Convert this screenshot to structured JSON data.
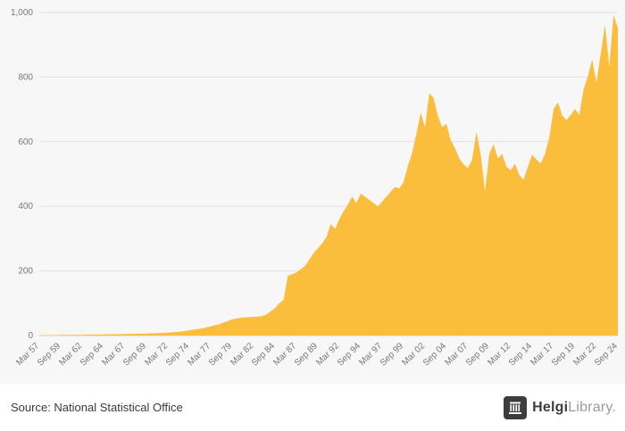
{
  "colors": {
    "background": "#f7f7f7",
    "area": "#FBBD3C",
    "grid": "#e2e2e2",
    "baseline": "#cfcfcf",
    "axis_text": "#777777"
  },
  "footer": {
    "source": "Source: National Statistical Office",
    "logo_bold": "Helgi",
    "logo_light": "Library",
    "logo_dot": "."
  },
  "chart_data": {
    "type": "area",
    "title": "",
    "xlabel": "",
    "ylabel": "",
    "ylim": [
      0,
      1000
    ],
    "y_ticks": [
      0,
      200,
      400,
      600,
      800,
      1000
    ],
    "y_tick_labels": [
      "0",
      "200",
      "400",
      "600",
      "800",
      "1,000"
    ],
    "grid": true,
    "legend": "none",
    "area_color": "#FBBD3C",
    "label_every": 5,
    "x_labels": [
      "Mar 57",
      "Sep 59",
      "Mar 62",
      "Sep 64",
      "Mar 67",
      "Sep 69",
      "Mar 72",
      "Sep 74",
      "Mar 77",
      "Sep 79",
      "Mar 82",
      "Sep 84",
      "Mar 87",
      "Sep 89",
      "Mar 92",
      "Sep 94",
      "Mar 97",
      "Sep 99",
      "Mar 02",
      "Sep 04",
      "Mar 07",
      "Sep 09",
      "Mar 12",
      "Sep 14",
      "Mar 17",
      "Sep 19",
      "Mar 22",
      "Sep 24"
    ],
    "x_frequency": "semiannual (Mar, Sep) 1957-2024",
    "values": [
      1,
      1,
      1,
      1,
      1,
      2,
      2,
      2,
      2,
      2,
      2,
      3,
      3,
      3,
      3,
      3,
      4,
      4,
      4,
      4,
      5,
      5,
      5,
      6,
      6,
      6,
      7,
      7,
      8,
      8,
      9,
      10,
      11,
      12,
      14,
      16,
      18,
      20,
      22,
      25,
      28,
      32,
      35,
      40,
      45,
      50,
      52,
      55,
      56,
      57,
      58,
      58,
      60,
      65,
      75,
      85,
      100,
      110,
      185,
      190,
      195,
      205,
      215,
      235,
      255,
      270,
      285,
      305,
      345,
      330,
      360,
      385,
      405,
      430,
      410,
      440,
      430,
      420,
      410,
      400,
      415,
      430,
      445,
      460,
      455,
      475,
      525,
      565,
      625,
      690,
      645,
      750,
      735,
      680,
      645,
      655,
      605,
      580,
      548,
      530,
      518,
      545,
      630,
      560,
      447,
      563,
      592,
      548,
      562,
      522,
      512,
      532,
      497,
      482,
      522,
      560,
      545,
      532,
      562,
      612,
      700,
      722,
      682,
      667,
      683,
      702,
      682,
      762,
      802,
      855,
      782,
      872,
      962,
      832,
      992,
      952
    ]
  }
}
